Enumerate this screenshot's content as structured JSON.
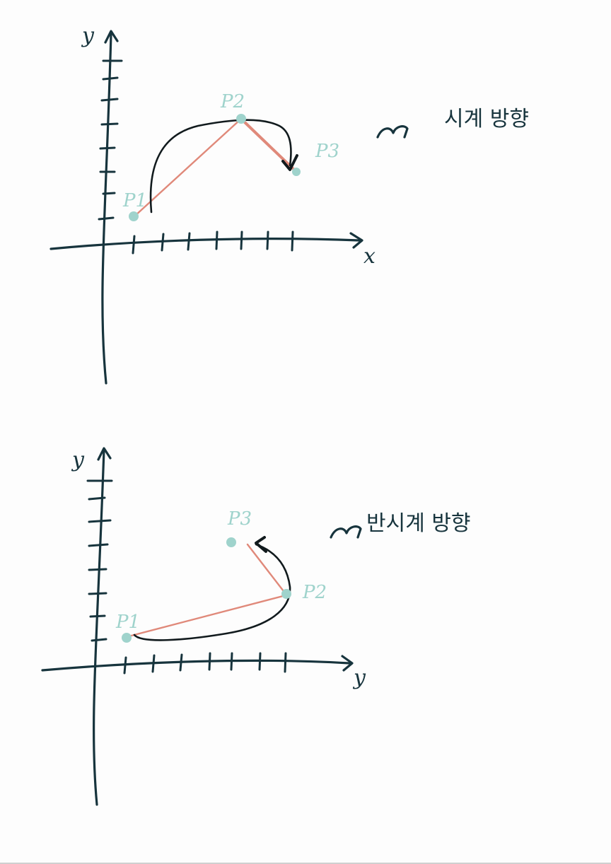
{
  "colors": {
    "background": "#fdfdfd",
    "ink": "#17343d",
    "arc": "#111a1d",
    "segment": "#e0897a",
    "point": "#9fd3cc"
  },
  "diagrams": [
    {
      "axis_x_label": "x",
      "axis_y_label": "y",
      "note_icon": "curved-arrow-icon",
      "note_text": "시계 방향",
      "points": [
        {
          "label": "P1",
          "x": 1,
          "y": 1
        },
        {
          "label": "P2",
          "x": 5,
          "y": 5
        },
        {
          "label": "P3",
          "x": 7,
          "y": 3
        }
      ]
    },
    {
      "axis_x_label": "y",
      "axis_y_label": "y",
      "note_icon": "curved-arrow-icon",
      "note_text": "반시계 방향",
      "points": [
        {
          "label": "P1",
          "x": 1,
          "y": 1
        },
        {
          "label": "P2",
          "x": 7,
          "y": 3
        },
        {
          "label": "P3",
          "x": 5,
          "y": 5
        }
      ]
    }
  ]
}
